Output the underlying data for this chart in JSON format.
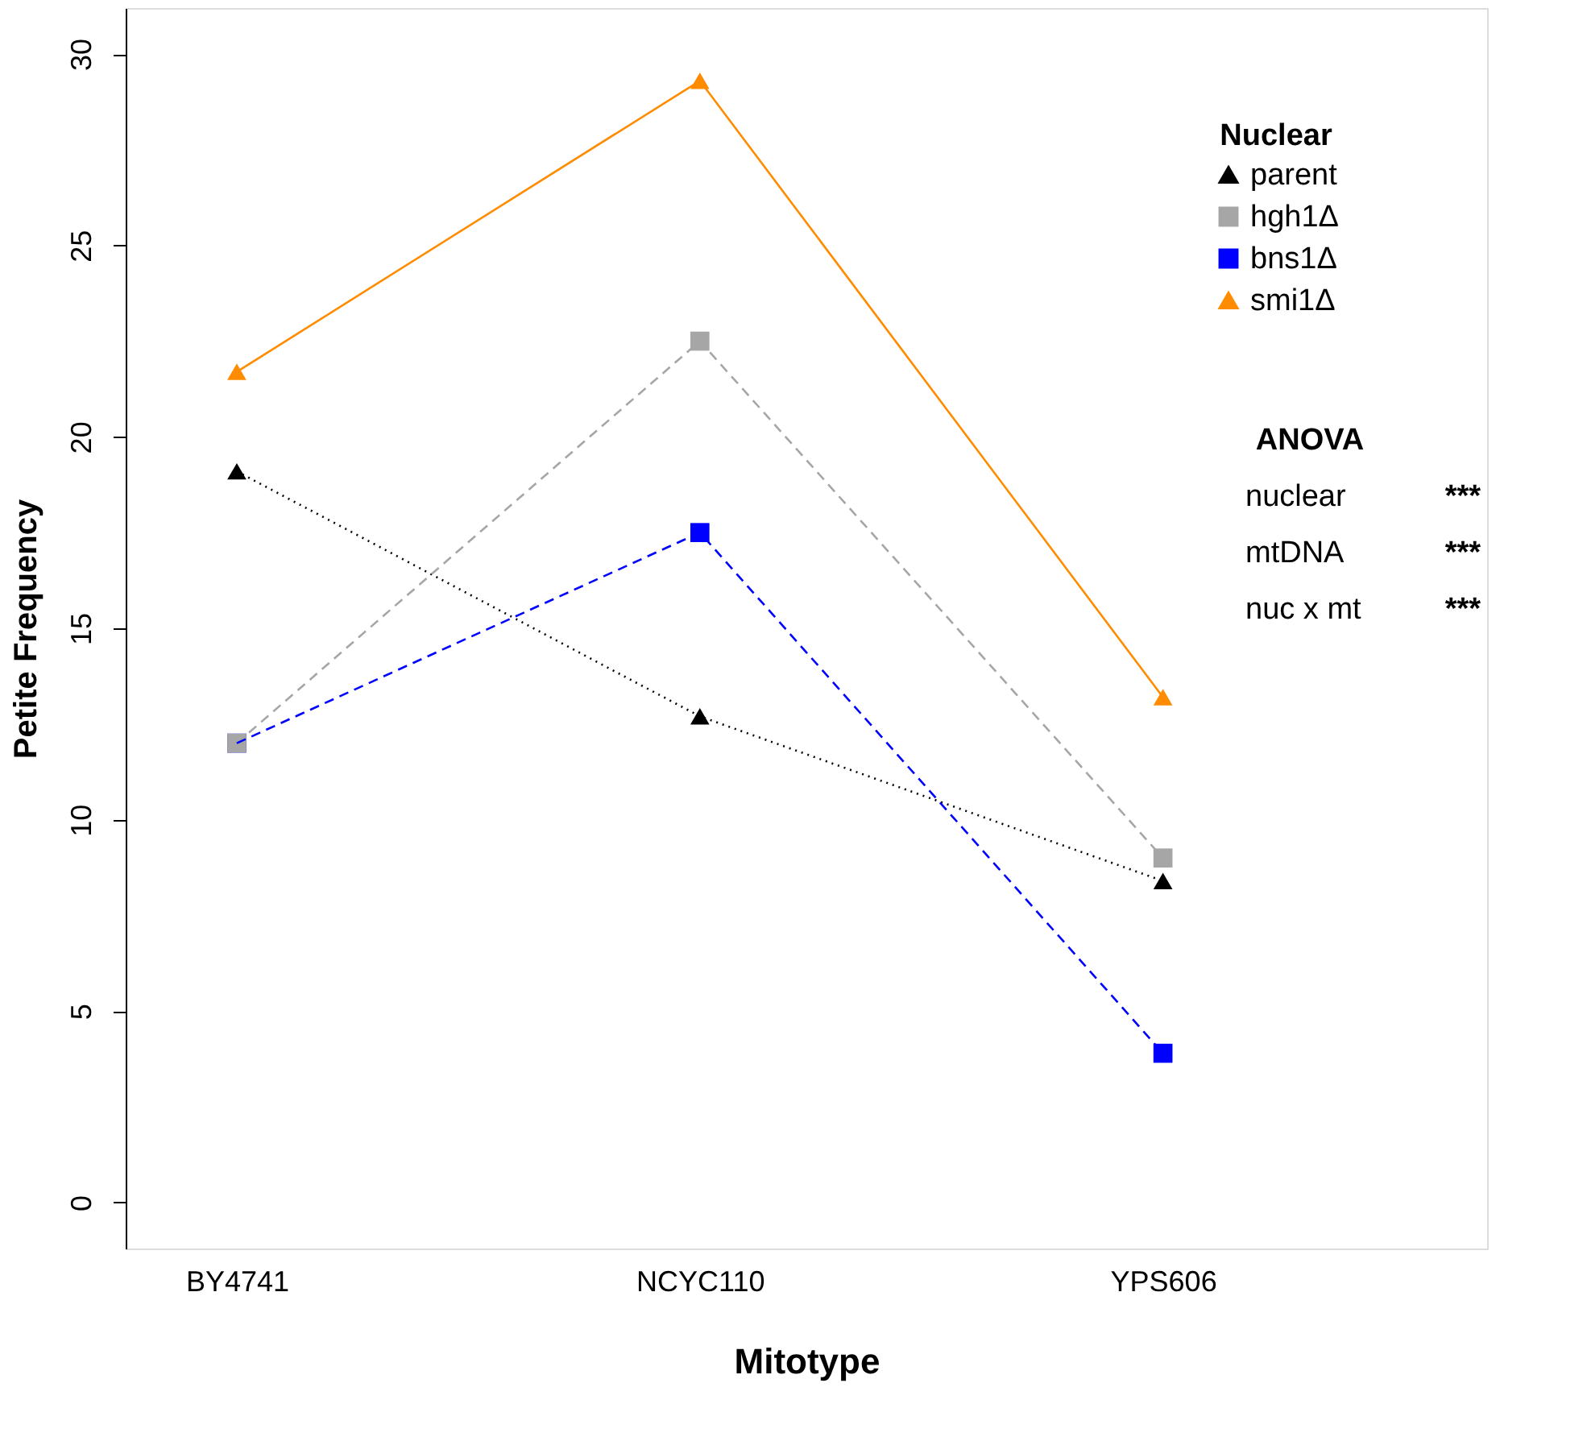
{
  "chart_data": {
    "type": "line",
    "xlabel": "Mitotype",
    "ylabel": "Petite Frequency",
    "legend_title": "Nuclear",
    "categories": [
      "BY4741",
      "NCYC110",
      "YPS606"
    ],
    "series": [
      {
        "name": "parent",
        "color": "#000000",
        "values": [
          19.1,
          12.7,
          8.4
        ],
        "marker": "triangle",
        "line_style": "dotted"
      },
      {
        "name": "hgh1Δ",
        "color": "#a6a6a6",
        "values": [
          12.0,
          22.5,
          9.0
        ],
        "marker": "square",
        "line_style": "dashed"
      },
      {
        "name": "bns1Δ",
        "color": "#0000ff",
        "values": [
          12.0,
          17.5,
          3.9
        ],
        "marker": "square",
        "line_style": "dashed"
      },
      {
        "name": "smi1Δ",
        "color": "#ff8c00",
        "values": [
          21.7,
          29.3,
          13.2
        ],
        "marker": "triangle",
        "line_style": "solid"
      }
    ],
    "ylim": [
      -1.2,
      31.2
    ],
    "yticks": [
      0,
      5,
      10,
      15,
      20,
      25,
      30
    ],
    "grid": false,
    "legend": "top right",
    "annotations": [
      "ANOVA",
      "nuclear ***",
      "mtDNA ***",
      "nuc x mt ***"
    ]
  }
}
